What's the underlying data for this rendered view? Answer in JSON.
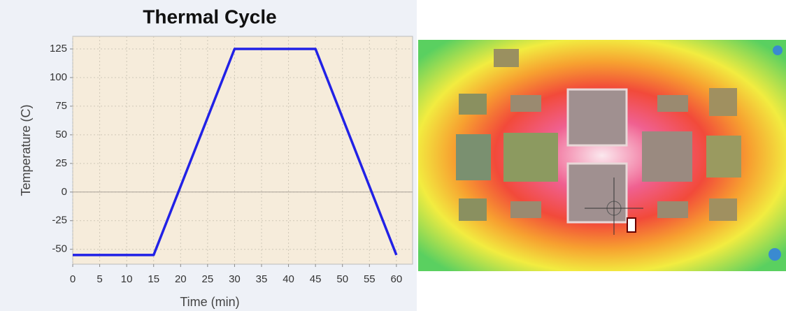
{
  "chart_data": {
    "type": "line",
    "title": "Thermal Cycle",
    "x_label": "Time (min)",
    "y_label": "Temperature (C)",
    "x": [
      0,
      15,
      30,
      45,
      60
    ],
    "series": [
      {
        "color": "#2121e6",
        "values": [
          -55,
          -55,
          125,
          125,
          -55
        ]
      }
    ],
    "xlim": [
      0,
      63
    ],
    "xticks": [
      0,
      5,
      10,
      15,
      20,
      25,
      30,
      35,
      40,
      45,
      50,
      55,
      60
    ],
    "ylim": [
      -63,
      136
    ],
    "yticks": [
      -50,
      -25,
      0,
      25,
      50,
      75,
      100,
      125
    ],
    "grid": true
  }
}
